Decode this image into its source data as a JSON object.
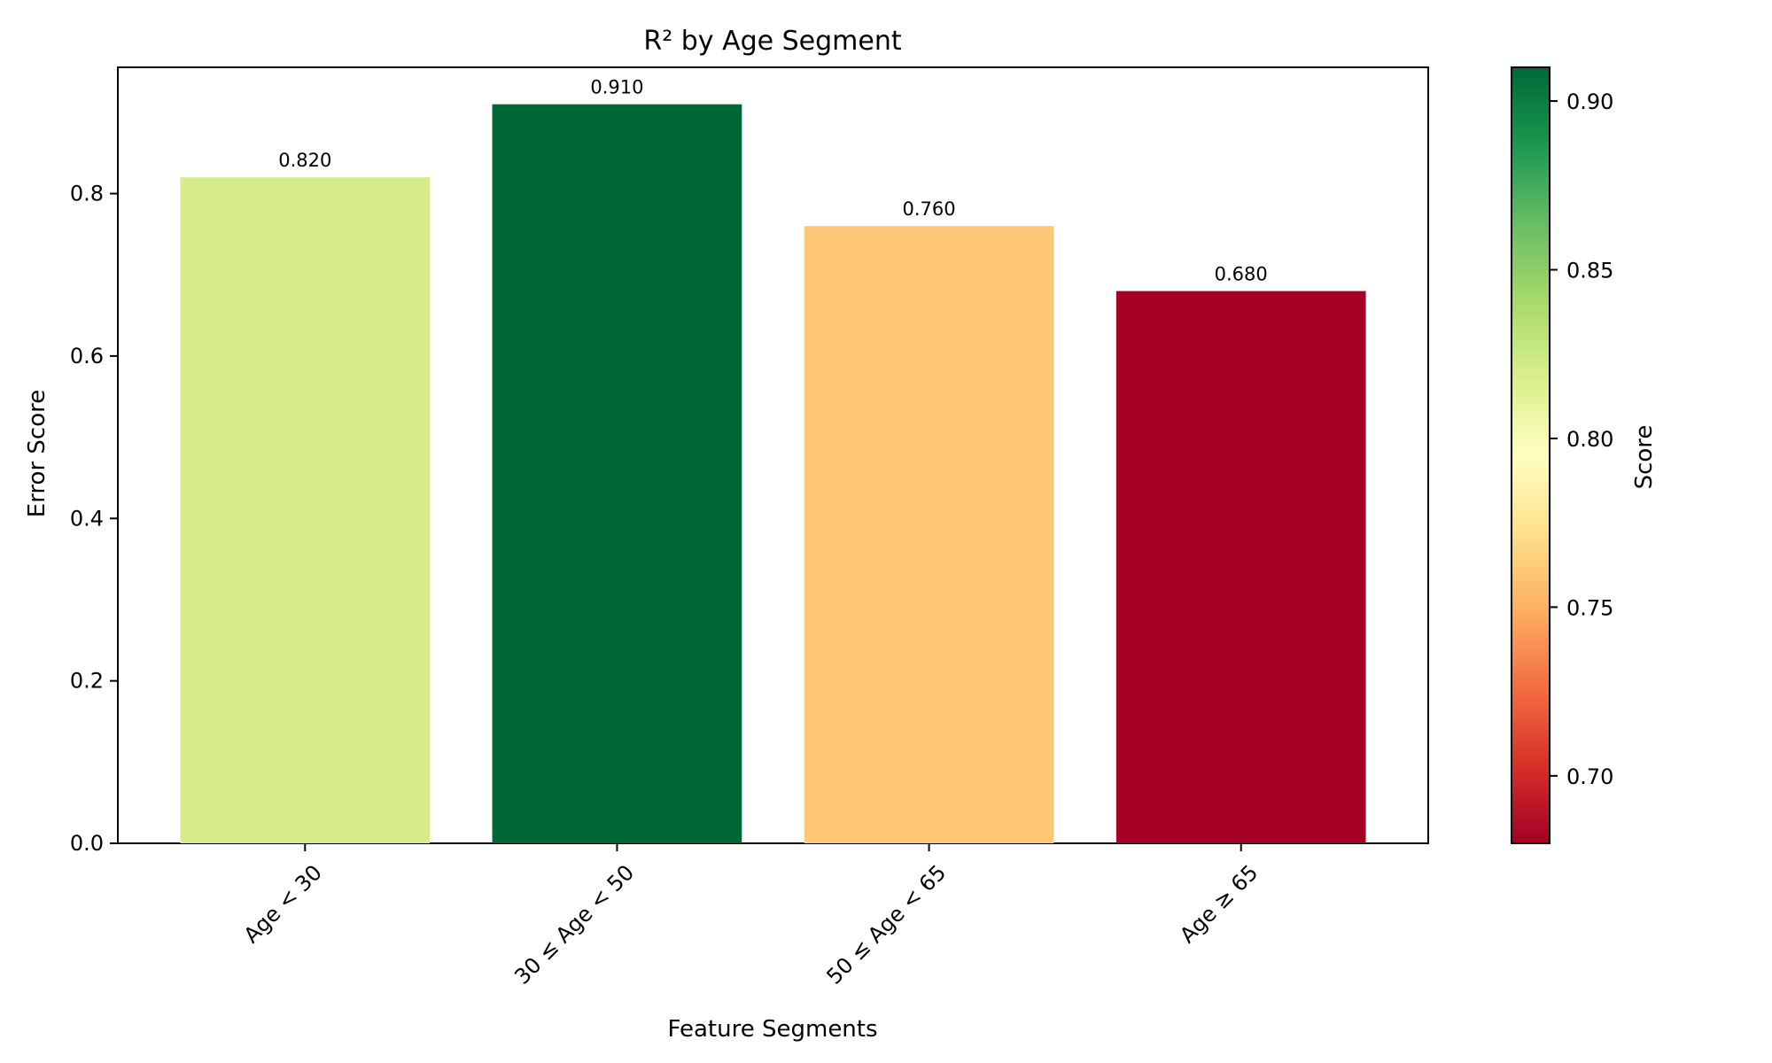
{
  "chart_data": {
    "type": "bar",
    "title": "R² by Age Segment",
    "xlabel": "Feature Segments",
    "ylabel": "Error Score",
    "categories": [
      "Age < 30",
      "30 ≤ Age < 50",
      "50 ≤ Age < 65",
      "Age ≥ 65"
    ],
    "values": [
      0.82,
      0.91,
      0.76,
      0.68
    ],
    "value_labels": [
      "0.820",
      "0.910",
      "0.760",
      "0.680"
    ],
    "bar_colors": [
      "#d6ec89",
      "#006837",
      "#fec877",
      "#a50026"
    ],
    "ylim": [
      0,
      0.9555
    ],
    "yticks": [
      0.0,
      0.2,
      0.4,
      0.6,
      0.8
    ],
    "ytick_labels": [
      "0.0",
      "0.2",
      "0.4",
      "0.6",
      "0.8"
    ],
    "grid": false,
    "legend": "none",
    "colorbar": {
      "label": "Score",
      "colormap": "RdYlGn",
      "range": [
        0.68,
        0.91
      ],
      "ticks": [
        0.7,
        0.75,
        0.8,
        0.85,
        0.9
      ],
      "tick_labels": [
        "0.70",
        "0.75",
        "0.80",
        "0.85",
        "0.90"
      ],
      "colors": [
        "#a50026",
        "#d73027",
        "#f46d43",
        "#fdae61",
        "#fee08b",
        "#ffffbf",
        "#d9ef8b",
        "#a6d96a",
        "#66bd63",
        "#1a9850",
        "#006837"
      ]
    }
  }
}
